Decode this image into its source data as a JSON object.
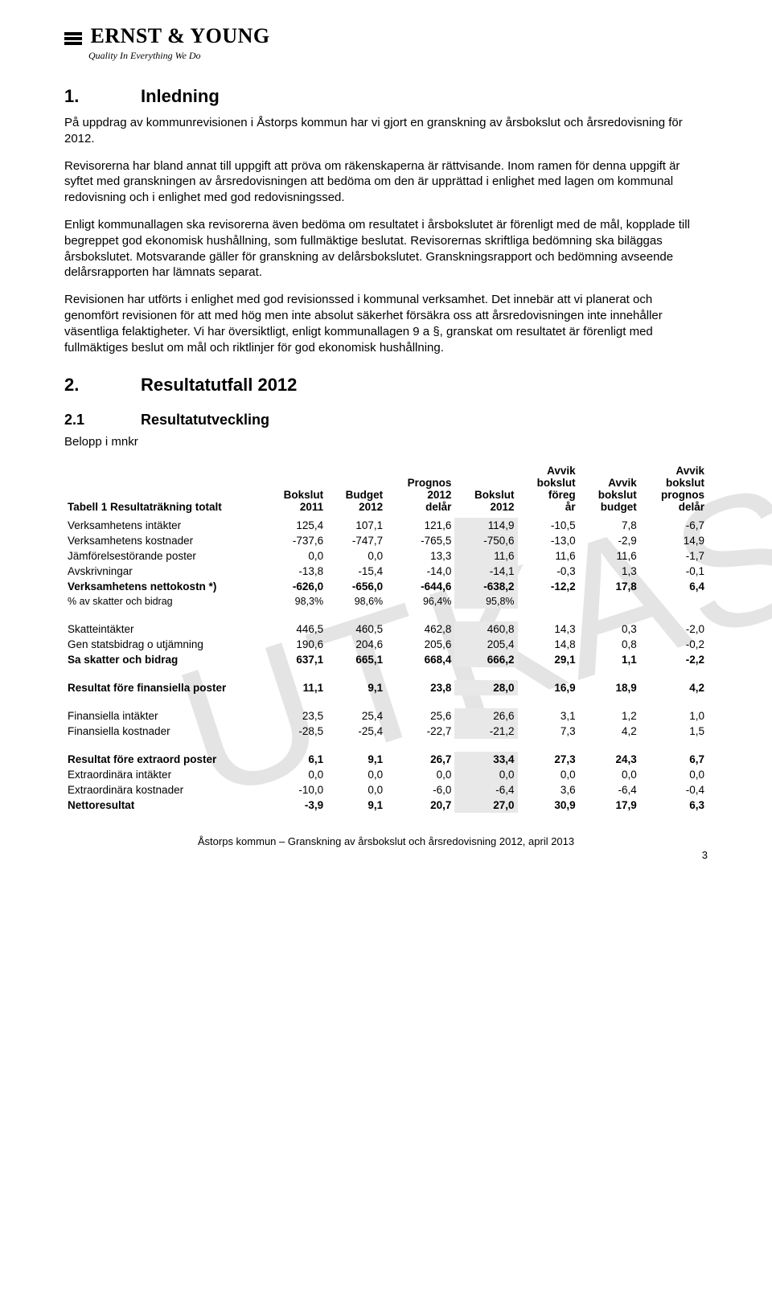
{
  "logo": {
    "company": "ERNST & YOUNG",
    "tagline": "Quality In Everything We Do"
  },
  "watermark": "UTKAST",
  "section1": {
    "num": "1.",
    "title": "Inledning",
    "p1": "På uppdrag av kommunrevisionen i Åstorps kommun har vi gjort en granskning av årsbokslut och årsredovisning för 2012.",
    "p2": "Revisorerna har bland annat till uppgift att pröva om räkenskaperna är rättvisande. Inom ramen för denna uppgift är syftet med granskningen av årsredovisningen att bedöma om den är upprättad i enlighet med lagen om kommunal redovisning och i enlighet med god redovisningssed.",
    "p3": "Enligt kommunallagen ska revisorerna även bedöma om resultatet i årsbokslutet är förenligt med de mål, kopplade till begreppet god ekonomisk hushållning, som fullmäktige beslutat. Revisorernas skriftliga bedömning ska biläggas årsbokslutet. Motsvarande gäller för granskning av delårsbokslutet. Granskningsrapport och bedömning avseende delårsrapporten har lämnats separat.",
    "p4": "Revisionen har utförts i enlighet med god revisionssed i kommunal verksamhet. Det innebär att vi planerat och genomfört revisionen för att med hög men inte absolut säkerhet försäkra oss att årsredovisningen inte innehåller väsentliga felaktigheter. Vi har översiktligt, enligt kommunallagen 9 a §, granskat om resultatet är förenligt med fullmäktiges beslut om mål och riktlinjer för god ekonomisk hushållning."
  },
  "section2": {
    "num": "2.",
    "title": "Resultatutfall 2012"
  },
  "section21": {
    "num": "2.1",
    "title": "Resultatutveckling",
    "belopp": "Belopp i mnkr"
  },
  "table": {
    "caption": "Tabell 1 Resultaträkning totalt",
    "headers": {
      "c1": "Bokslut 2011",
      "c2": "Budget 2012",
      "c3": "Prognos 2012 delår",
      "c4": "Bokslut 2012",
      "c5": "Avvik bokslut föreg år",
      "c6": "Avvik bokslut budget",
      "c7": "Avvik bokslut prognos delår"
    },
    "rows": [
      {
        "label": "Verksamhetens intäkter",
        "v": [
          "125,4",
          "107,1",
          "121,6",
          "114,9",
          "-10,5",
          "7,8",
          "-6,7"
        ],
        "bold": false
      },
      {
        "label": "Verksamhetens kostnader",
        "v": [
          "-737,6",
          "-747,7",
          "-765,5",
          "-750,6",
          "-13,0",
          "-2,9",
          "14,9"
        ],
        "bold": false
      },
      {
        "label": "Jämförelsestörande poster",
        "v": [
          "0,0",
          "0,0",
          "13,3",
          "11,6",
          "11,6",
          "11,6",
          "-1,7"
        ],
        "bold": false
      },
      {
        "label": "Avskrivningar",
        "v": [
          "-13,8",
          "-15,4",
          "-14,0",
          "-14,1",
          "-0,3",
          "1,3",
          "-0,1"
        ],
        "bold": false
      },
      {
        "label": "Verksamhetens nettokostn *)",
        "v": [
          "-626,0",
          "-656,0",
          "-644,6",
          "-638,2",
          "-12,2",
          "17,8",
          "6,4"
        ],
        "bold": true
      },
      {
        "label": "% av skatter och bidrag",
        "v": [
          "98,3%",
          "98,6%",
          "96,4%",
          "95,8%",
          "",
          "",
          ""
        ],
        "bold": false,
        "small": true
      }
    ],
    "rows2": [
      {
        "label": "Skatteintäkter",
        "v": [
          "446,5",
          "460,5",
          "462,8",
          "460,8",
          "14,3",
          "0,3",
          "-2,0"
        ],
        "bold": false
      },
      {
        "label": "Gen statsbidrag o utjämning",
        "v": [
          "190,6",
          "204,6",
          "205,6",
          "205,4",
          "14,8",
          "0,8",
          "-0,2"
        ],
        "bold": false
      },
      {
        "label": "Sa skatter och bidrag",
        "v": [
          "637,1",
          "665,1",
          "668,4",
          "666,2",
          "29,1",
          "1,1",
          "-2,2"
        ],
        "bold": true
      }
    ],
    "rows3": [
      {
        "label": "Resultat före finansiella poster",
        "v": [
          "11,1",
          "9,1",
          "23,8",
          "28,0",
          "16,9",
          "18,9",
          "4,2"
        ],
        "bold": true
      }
    ],
    "rows4": [
      {
        "label": "Finansiella intäkter",
        "v": [
          "23,5",
          "25,4",
          "25,6",
          "26,6",
          "3,1",
          "1,2",
          "1,0"
        ],
        "bold": false
      },
      {
        "label": "Finansiella kostnader",
        "v": [
          "-28,5",
          "-25,4",
          "-22,7",
          "-21,2",
          "7,3",
          "4,2",
          "1,5"
        ],
        "bold": false
      }
    ],
    "rows5": [
      {
        "label": "Resultat före extraord poster",
        "v": [
          "6,1",
          "9,1",
          "26,7",
          "33,4",
          "27,3",
          "24,3",
          "6,7"
        ],
        "bold": true
      },
      {
        "label": "Extraordinära intäkter",
        "v": [
          "0,0",
          "0,0",
          "0,0",
          "0,0",
          "0,0",
          "0,0",
          "0,0"
        ],
        "bold": false
      },
      {
        "label": "Extraordinära kostnader",
        "v": [
          "-10,0",
          "0,0",
          "-6,0",
          "-6,4",
          "3,6",
          "-6,4",
          "-0,4"
        ],
        "bold": false
      },
      {
        "label": "Nettoresultat",
        "v": [
          "-3,9",
          "9,1",
          "20,7",
          "27,0",
          "30,9",
          "17,9",
          "6,3"
        ],
        "bold": true
      }
    ]
  },
  "footer": {
    "text": "Åstorps kommun – Granskning av årsbokslut och årsredovisning 2012, april 2013",
    "page": "3"
  }
}
